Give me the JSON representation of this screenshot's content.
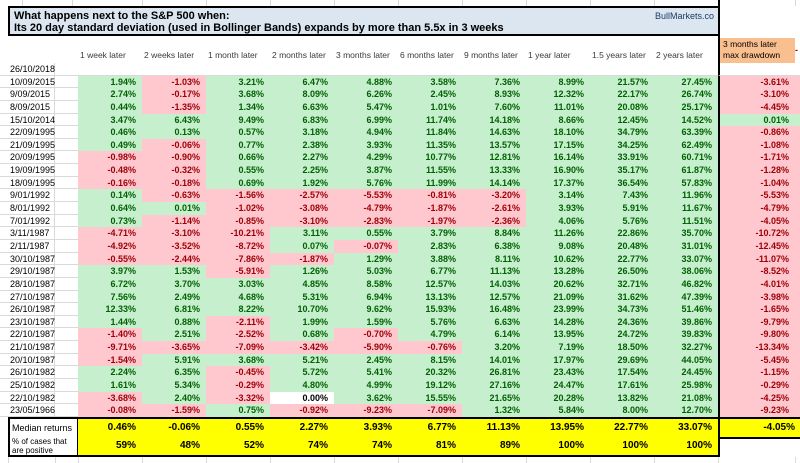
{
  "title": {
    "line1": "What happens next to the S&P 500 when:",
    "line2": "Its 20 day standard deviation (used in Bollinger Bands) expands by more than 5.5x in 3 weeks",
    "brand": "BullMarkets.co"
  },
  "columns": [
    "1 week later",
    "2 weeks later",
    "1 month later",
    "2 months later",
    "3 months later",
    "6 months later",
    "9 months later",
    "1 year later",
    "1.5 years later",
    "2 years later"
  ],
  "drawdown_header": {
    "line1": "3 months later",
    "line2": "max drawdown"
  },
  "right_edge_fragment": "-",
  "rows": [
    {
      "date": "26/10/2018",
      "values": [
        "",
        "",
        "",
        "",
        "",
        "",
        "",
        "",
        "",
        ""
      ],
      "drawdown": ""
    },
    {
      "date": "10/09/2015",
      "values": [
        "1.94%",
        "-1.03%",
        "3.21%",
        "6.47%",
        "4.88%",
        "3.58%",
        "7.36%",
        "8.99%",
        "21.57%",
        "27.45%"
      ],
      "drawdown": "-3.61%"
    },
    {
      "date": "9/09/2015",
      "values": [
        "2.74%",
        "-0.17%",
        "3.68%",
        "8.09%",
        "6.26%",
        "2.45%",
        "8.93%",
        "12.32%",
        "22.17%",
        "26.74%"
      ],
      "drawdown": "-3.10%"
    },
    {
      "date": "8/09/2015",
      "values": [
        "0.44%",
        "-1.35%",
        "1.34%",
        "6.63%",
        "5.47%",
        "1.01%",
        "7.60%",
        "11.01%",
        "20.08%",
        "25.17%"
      ],
      "drawdown": "-4.45%"
    },
    {
      "date": "15/10/2014",
      "values": [
        "3.47%",
        "6.43%",
        "9.49%",
        "6.83%",
        "6.99%",
        "11.74%",
        "14.18%",
        "8.66%",
        "12.45%",
        "14.52%"
      ],
      "drawdown": "0.01%"
    },
    {
      "date": "22/09/1995",
      "values": [
        "0.46%",
        "0.13%",
        "0.57%",
        "3.18%",
        "4.94%",
        "11.84%",
        "14.63%",
        "18.10%",
        "34.79%",
        "63.39%"
      ],
      "drawdown": "-0.86%"
    },
    {
      "date": "21/09/1995",
      "values": [
        "0.49%",
        "-0.06%",
        "0.77%",
        "2.38%",
        "3.93%",
        "11.35%",
        "13.57%",
        "17.15%",
        "34.25%",
        "62.49%"
      ],
      "drawdown": "-1.08%"
    },
    {
      "date": "20/09/1995",
      "values": [
        "-0.98%",
        "-0.90%",
        "0.66%",
        "2.27%",
        "4.29%",
        "10.77%",
        "12.81%",
        "16.14%",
        "33.91%",
        "60.71%"
      ],
      "drawdown": "-1.71%"
    },
    {
      "date": "19/09/1995",
      "values": [
        "-0.48%",
        "-0.32%",
        "0.55%",
        "2.25%",
        "3.87%",
        "11.55%",
        "13.33%",
        "16.90%",
        "35.17%",
        "61.87%"
      ],
      "drawdown": "-1.28%"
    },
    {
      "date": "18/09/1995",
      "values": [
        "-0.16%",
        "-0.18%",
        "0.69%",
        "1.92%",
        "5.76%",
        "11.99%",
        "14.14%",
        "17.37%",
        "36.54%",
        "57.83%"
      ],
      "drawdown": "-1.04%"
    },
    {
      "date": "9/01/1992",
      "values": [
        "0.14%",
        "-0.63%",
        "-1.56%",
        "-2.57%",
        "-5.53%",
        "-0.81%",
        "-3.20%",
        "3.14%",
        "7.43%",
        "11.96%"
      ],
      "drawdown": "-5.53%"
    },
    {
      "date": "8/01/1992",
      "values": [
        "0.64%",
        "0.01%",
        "-1.02%",
        "-3.08%",
        "-4.79%",
        "-1.87%",
        "-2.61%",
        "3.93%",
        "5.91%",
        "11.67%"
      ],
      "drawdown": "-4.79%"
    },
    {
      "date": "7/01/1992",
      "values": [
        "0.73%",
        "-1.14%",
        "-0.85%",
        "-3.10%",
        "-2.83%",
        "-1.97%",
        "-2.36%",
        "4.06%",
        "5.76%",
        "11.51%"
      ],
      "drawdown": "-4.05%"
    },
    {
      "date": "3/11/1987",
      "values": [
        "-4.71%",
        "-3.10%",
        "-10.21%",
        "3.11%",
        "0.55%",
        "3.79%",
        "8.84%",
        "11.26%",
        "22.86%",
        "35.70%"
      ],
      "drawdown": "-10.72%"
    },
    {
      "date": "2/11/1987",
      "values": [
        "-4.92%",
        "-3.52%",
        "-8.72%",
        "0.07%",
        "-0.07%",
        "2.83%",
        "6.38%",
        "9.08%",
        "20.48%",
        "31.01%"
      ],
      "drawdown": "-12.45%"
    },
    {
      "date": "30/10/1987",
      "values": [
        "-0.55%",
        "-2.44%",
        "-7.86%",
        "-1.87%",
        "1.29%",
        "3.88%",
        "8.11%",
        "10.62%",
        "22.77%",
        "33.07%"
      ],
      "drawdown": "-11.07%"
    },
    {
      "date": "29/10/1987",
      "values": [
        "3.97%",
        "1.53%",
        "-5.91%",
        "1.26%",
        "5.03%",
        "6.77%",
        "11.13%",
        "13.28%",
        "26.50%",
        "38.06%"
      ],
      "drawdown": "-8.52%"
    },
    {
      "date": "28/10/1987",
      "values": [
        "6.72%",
        "3.70%",
        "3.03%",
        "4.85%",
        "8.58%",
        "12.57%",
        "14.03%",
        "20.62%",
        "32.71%",
        "46.82%"
      ],
      "drawdown": "-4.01%"
    },
    {
      "date": "27/10/1987",
      "values": [
        "7.56%",
        "2.49%",
        "4.68%",
        "5.31%",
        "6.94%",
        "13.13%",
        "12.57%",
        "21.09%",
        "31.62%",
        "47.39%"
      ],
      "drawdown": "-3.98%"
    },
    {
      "date": "26/10/1987",
      "values": [
        "12.33%",
        "6.81%",
        "8.22%",
        "10.70%",
        "9.62%",
        "15.93%",
        "16.48%",
        "23.99%",
        "34.73%",
        "51.46%"
      ],
      "drawdown": "-1.65%"
    },
    {
      "date": "23/10/1987",
      "values": [
        "1.44%",
        "0.88%",
        "-2.11%",
        "1.99%",
        "1.59%",
        "5.76%",
        "6.63%",
        "14.28%",
        "24.36%",
        "39.86%"
      ],
      "drawdown": "-9.79%"
    },
    {
      "date": "22/10/1987",
      "values": [
        "-1.40%",
        "2.51%",
        "-2.52%",
        "0.68%",
        "-0.70%",
        "4.79%",
        "6.14%",
        "13.95%",
        "24.72%",
        "39.83%"
      ],
      "drawdown": "-9.80%"
    },
    {
      "date": "21/10/1987",
      "values": [
        "-9.71%",
        "-3.65%",
        "-7.09%",
        "-3.42%",
        "-5.90%",
        "-0.76%",
        "3.20%",
        "7.19%",
        "18.50%",
        "32.27%"
      ],
      "drawdown": "-13.34%"
    },
    {
      "date": "20/10/1987",
      "values": [
        "-1.54%",
        "5.91%",
        "3.68%",
        "5.21%",
        "2.45%",
        "8.15%",
        "14.01%",
        "17.97%",
        "29.69%",
        "44.05%"
      ],
      "drawdown": "-5.45%"
    },
    {
      "date": "26/10/1982",
      "values": [
        "2.24%",
        "6.35%",
        "-0.45%",
        "5.72%",
        "5.41%",
        "20.32%",
        "26.81%",
        "23.43%",
        "17.54%",
        "24.45%"
      ],
      "drawdown": "-1.15%"
    },
    {
      "date": "25/10/1982",
      "values": [
        "1.61%",
        "5.34%",
        "-0.29%",
        "4.80%",
        "4.99%",
        "19.12%",
        "27.16%",
        "24.47%",
        "17.61%",
        "25.98%"
      ],
      "drawdown": "-0.29%"
    },
    {
      "date": "22/10/1982",
      "values": [
        "-3.68%",
        "2.40%",
        "-3.32%",
        "0.00%",
        "3.62%",
        "15.55%",
        "21.65%",
        "20.28%",
        "13.82%",
        "21.08%"
      ],
      "drawdown": "-4.25%"
    },
    {
      "date": "23/05/1966",
      "values": [
        "-0.08%",
        "-1.59%",
        "0.75%",
        "-0.92%",
        "-9.23%",
        "-7.09%",
        "1.32%",
        "5.84%",
        "8.00%",
        "12.70%"
      ],
      "drawdown": "-9.23%"
    }
  ],
  "summary": {
    "median_label": "Median returns",
    "median_values": [
      "0.46%",
      "-0.06%",
      "0.55%",
      "2.27%",
      "3.93%",
      "6.77%",
      "11.13%",
      "13.95%",
      "22.77%",
      "33.07%"
    ],
    "median_drawdown": "-4.05%",
    "percent_label_line1": "% of cases that",
    "percent_label_line2": "are positive",
    "percent_values": [
      "59%",
      "48%",
      "52%",
      "74%",
      "74%",
      "81%",
      "89%",
      "100%",
      "100%",
      "100%"
    ]
  },
  "colors": {
    "pos_bg": "#C6EFCE",
    "pos_text": "#006100",
    "neg_bg": "#FFC7CE",
    "neg_text": "#9C0006",
    "title_bg": "#DCE6F1",
    "orange_bg": "#FABF8F",
    "yellow_bg": "#FFFF00",
    "brand_text": "#17375E",
    "gridline": "#D9D9D9"
  }
}
